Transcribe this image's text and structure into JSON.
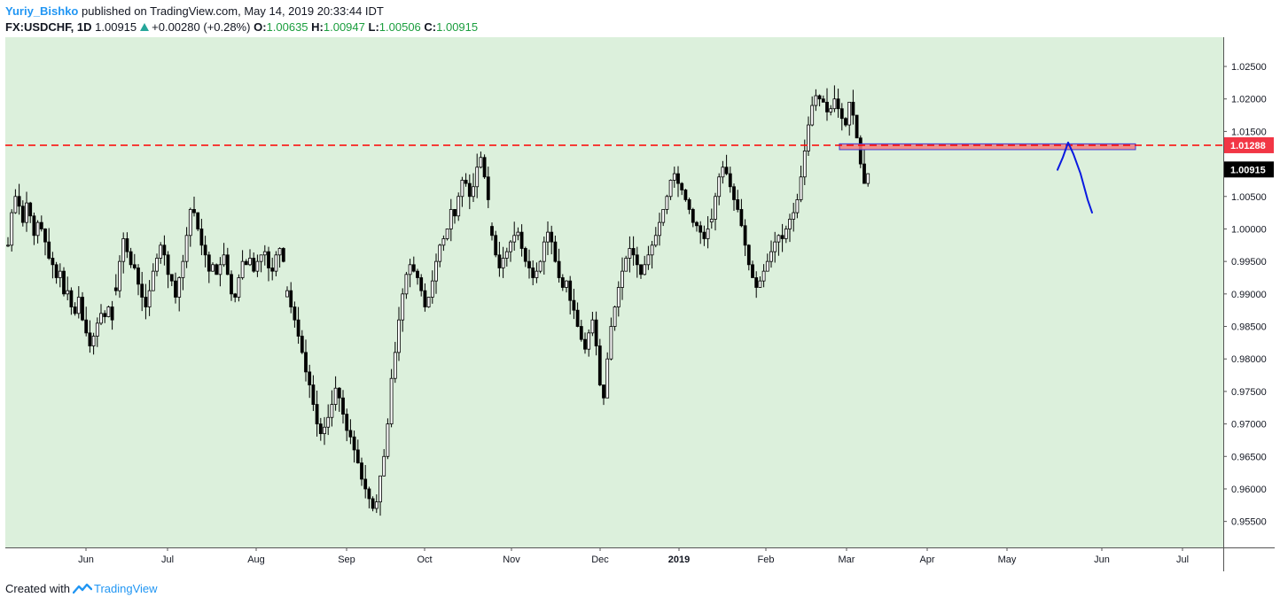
{
  "header": {
    "author": "Yuriy_Bishko",
    "published_text": "published on TradingView.com, May 14, 2019 20:33:44 IDT",
    "symbol": "FX:USDCHF, 1D",
    "last": "1.00915",
    "change": "+0.00280 (+0.28%)",
    "o_label": "O:",
    "o": "1.00635",
    "h_label": "H:",
    "h": "1.00947",
    "l_label": "L:",
    "l": "1.00506",
    "c_label": "C:",
    "c": "1.00915"
  },
  "footer": {
    "created_with": "Created with",
    "brand": "TradingView"
  },
  "colors": {
    "plot_background": "#dcf0dc",
    "candle": "#000000",
    "resistance_line": "#ff0000",
    "zone_fill": "#f08080",
    "zone_border": "#3b3bd6",
    "forecast_line": "#0a1ae0",
    "badge_red": "#f23645",
    "badge_black": "#000000",
    "brand": "#2196f3"
  },
  "chart_data": {
    "type": "candlestick",
    "y_range": [
      0.951,
      1.0295
    ],
    "y_ticks": [
      "1.02500",
      "1.02000",
      "1.01500",
      "1.00500",
      "1.00000",
      "0.99500",
      "0.99000",
      "0.98500",
      "0.98000",
      "0.97500",
      "0.97000",
      "0.96500",
      "0.96000",
      "0.95500"
    ],
    "x_ticks": [
      "Jun",
      "Jul",
      "Aug",
      "Sep",
      "Oct",
      "Nov",
      "Dec",
      "2019",
      "Feb",
      "Mar",
      "Apr",
      "May",
      "Jun",
      "Jul"
    ],
    "resistance_level": 1.01288,
    "resistance_label": "1.01288",
    "last_price_label": "1.00915",
    "zone": {
      "from": "Mar",
      "to": "Jun",
      "low": 1.0122,
      "high": 1.0131
    },
    "forecast_path": [
      1.0091,
      1.011,
      1.0133,
      1.0115,
      1.0085,
      1.0045,
      1.0025
    ],
    "series": [
      {
        "start": 0,
        "prices": [
          0.9975,
          1.0025,
          1.005,
          1.0035,
          1.001,
          1.004,
          1.002,
          0.999,
          1.001,
          1.0,
          0.998,
          0.9955,
          0.9945,
          0.9925,
          0.9935,
          0.99,
          0.9905,
          0.988,
          0.987,
          0.9895,
          0.986,
          0.984,
          0.982,
          0.9835,
          0.9855,
          0.987,
          0.9865,
          0.988,
          0.986
        ]
      },
      {
        "start": 29,
        "prices": [
          0.9905,
          0.995,
          0.9985,
          0.9965,
          0.9945,
          0.994,
          0.9915,
          0.9895,
          0.988,
          0.9905,
          0.9935,
          0.9955,
          0.9975,
          0.996,
          0.993,
          0.992,
          0.9895,
          0.9925,
          0.995,
          0.999,
          1.003,
          1.0025,
          1.0,
          0.9975,
          0.996,
          0.9935,
          0.9945,
          0.993,
          0.9945,
          0.996,
          0.993,
          0.99,
          0.9895,
          0.9925,
          0.995,
          0.9945,
          0.9955,
          0.9935,
          0.995,
          0.996,
          0.9965,
          0.994,
          0.9935,
          0.996,
          0.997,
          0.995
        ]
      },
      {
        "start": 75,
        "prices": [
          0.9905,
          0.988,
          0.986,
          0.9835,
          0.981,
          0.978,
          0.976,
          0.973,
          0.97,
          0.9685,
          0.9695,
          0.971,
          0.973,
          0.9755,
          0.974,
          0.9715,
          0.969,
          0.968,
          0.966,
          0.964,
          0.9615,
          0.96,
          0.9585,
          0.957,
          0.958,
          0.962,
          0.965,
          0.97,
          0.977,
          0.981,
          0.986,
          0.99,
          0.993,
          0.9945,
          0.9935,
          0.9925,
          0.9905,
          0.988,
          0.9895,
          0.992,
          0.995,
          0.9975,
          0.9985,
          1.0,
          1.003,
          1.002,
          1.005,
          1.0075,
          1.007,
          1.005,
          1.0065,
          1.0095,
          1.011,
          1.008,
          1.0045
        ]
      },
      {
        "start": 130,
        "prices": [
          0.999,
          0.996,
          0.994,
          0.9955,
          0.9965,
          0.998,
          0.999,
          0.9995,
          0.997,
          0.995,
          0.994,
          0.9925,
          0.9935,
          0.995,
          0.998,
          0.9995,
          0.998,
          0.995,
          0.9925,
          0.991,
          0.992,
          0.989,
          0.9875,
          0.985,
          0.983,
          0.9815,
          0.984,
          0.986,
          0.982,
          0.976,
          0.974,
          0.98,
          0.985,
          0.988,
          0.991,
          0.9935,
          0.9955,
          0.997,
          0.996,
          0.9945,
          0.993,
          0.9945,
          0.996,
          0.9975,
          0.999,
          1.001,
          1.003,
          1.005,
          1.0075,
          1.0085,
          1.007,
          1.006,
          1.0045,
          1.003,
          1.001,
          1.0005,
          0.9995,
          0.9985,
          1.0
        ]
      },
      {
        "start": 189,
        "prices": [
          1.0015,
          1.005,
          1.008,
          1.0095,
          1.0085,
          1.0065,
          1.0045,
          1.003,
          1.0005,
          0.9975,
          0.9945,
          0.9925,
          0.991,
          0.992,
          0.9935,
          0.995,
          0.9965,
          0.998,
          0.999,
          0.9985,
          1.0,
          1.0015,
          1.0025,
          1.0045,
          1.008,
          1.012,
          1.016,
          1.019,
          1.0205,
          1.02,
          1.0195,
          1.018,
          1.0185,
          1.02,
          1.0185,
          1.017,
          1.016,
          1.0195,
          1.0175,
          1.014,
          1.01,
          1.007,
          1.0085
        ]
      }
    ]
  }
}
